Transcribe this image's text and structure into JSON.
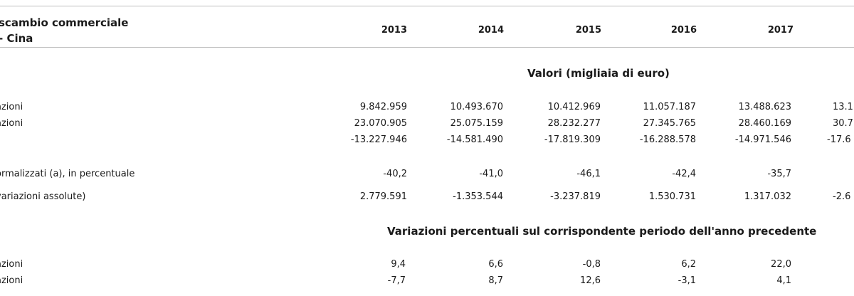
{
  "header": {
    "title_line1": "scambio commerciale",
    "title_line2": "- Cina",
    "years": [
      "2013",
      "2014",
      "2015",
      "2016",
      "2017"
    ]
  },
  "sections": {
    "values_title": "Valori (migliaia di euro)",
    "changes_title": "Variazioni percentuali sul corrispondente periodo dell'anno precedente"
  },
  "rows": [
    {
      "label": "azioni",
      "values": [
        "9.842.959",
        "10.493.670",
        "10.412.969",
        "11.057.187",
        "13.488.623"
      ],
      "overflow": "13.1"
    },
    {
      "label": "azioni",
      "values": [
        "23.070.905",
        "25.075.159",
        "28.232.277",
        "27.345.765",
        "28.460.169"
      ],
      "overflow": "30.7"
    },
    {
      "label": "",
      "values": [
        "-13.227.946",
        "-14.581.490",
        "-17.819.309",
        "-16.288.578",
        "-14.971.546"
      ],
      "overflow": "-17.6"
    },
    {
      "label": "ormalizzati (a), in percentuale",
      "values": [
        "-40,2",
        "-41,0",
        "-46,1",
        "-42,4",
        "-35,7"
      ],
      "overflow": ""
    },
    {
      "label": "variazioni assolute)",
      "values": [
        "2.779.591",
        "-1.353.544",
        "-3.237.819",
        "1.530.731",
        "1.317.032"
      ],
      "overflow": "-2.6"
    },
    {
      "label": "azioni",
      "values": [
        "9,4",
        "6,6",
        "-0,8",
        "6,2",
        "22,0"
      ],
      "overflow": ""
    },
    {
      "label": "azioni",
      "values": [
        "-7,7",
        "8,7",
        "12,6",
        "-3,1",
        "4,1"
      ],
      "overflow": ""
    }
  ]
}
